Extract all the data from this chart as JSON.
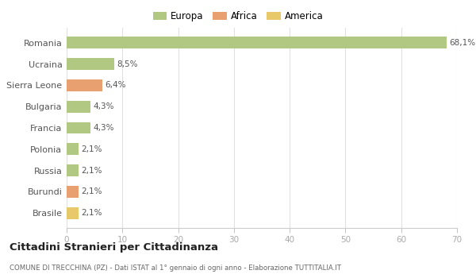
{
  "categories": [
    "Brasile",
    "Burundi",
    "Russia",
    "Polonia",
    "Francia",
    "Bulgaria",
    "Sierra Leone",
    "Ucraina",
    "Romania"
  ],
  "values": [
    2.1,
    2.1,
    2.1,
    2.1,
    4.3,
    4.3,
    6.4,
    8.5,
    68.1
  ],
  "labels": [
    "2,1%",
    "2,1%",
    "2,1%",
    "2,1%",
    "4,3%",
    "4,3%",
    "6,4%",
    "8,5%",
    "68,1%"
  ],
  "colors": [
    "#e8c96a",
    "#e8a070",
    "#b0c882",
    "#b0c882",
    "#b0c882",
    "#b0c882",
    "#e8a070",
    "#b0c882",
    "#b0c882"
  ],
  "legend_labels": [
    "Europa",
    "Africa",
    "America"
  ],
  "legend_colors": [
    "#b0c882",
    "#e8a070",
    "#e8c96a"
  ],
  "title": "Cittadini Stranieri per Cittadinanza",
  "subtitle": "COMUNE DI TRECCHINA (PZ) - Dati ISTAT al 1° gennaio di ogni anno - Elaborazione TUTTITALIA.IT",
  "xlim": [
    0,
    70
  ],
  "xticks": [
    0,
    10,
    20,
    30,
    40,
    50,
    60,
    70
  ],
  "background_color": "#ffffff",
  "grid_color": "#e0e0e0",
  "bar_height": 0.55
}
